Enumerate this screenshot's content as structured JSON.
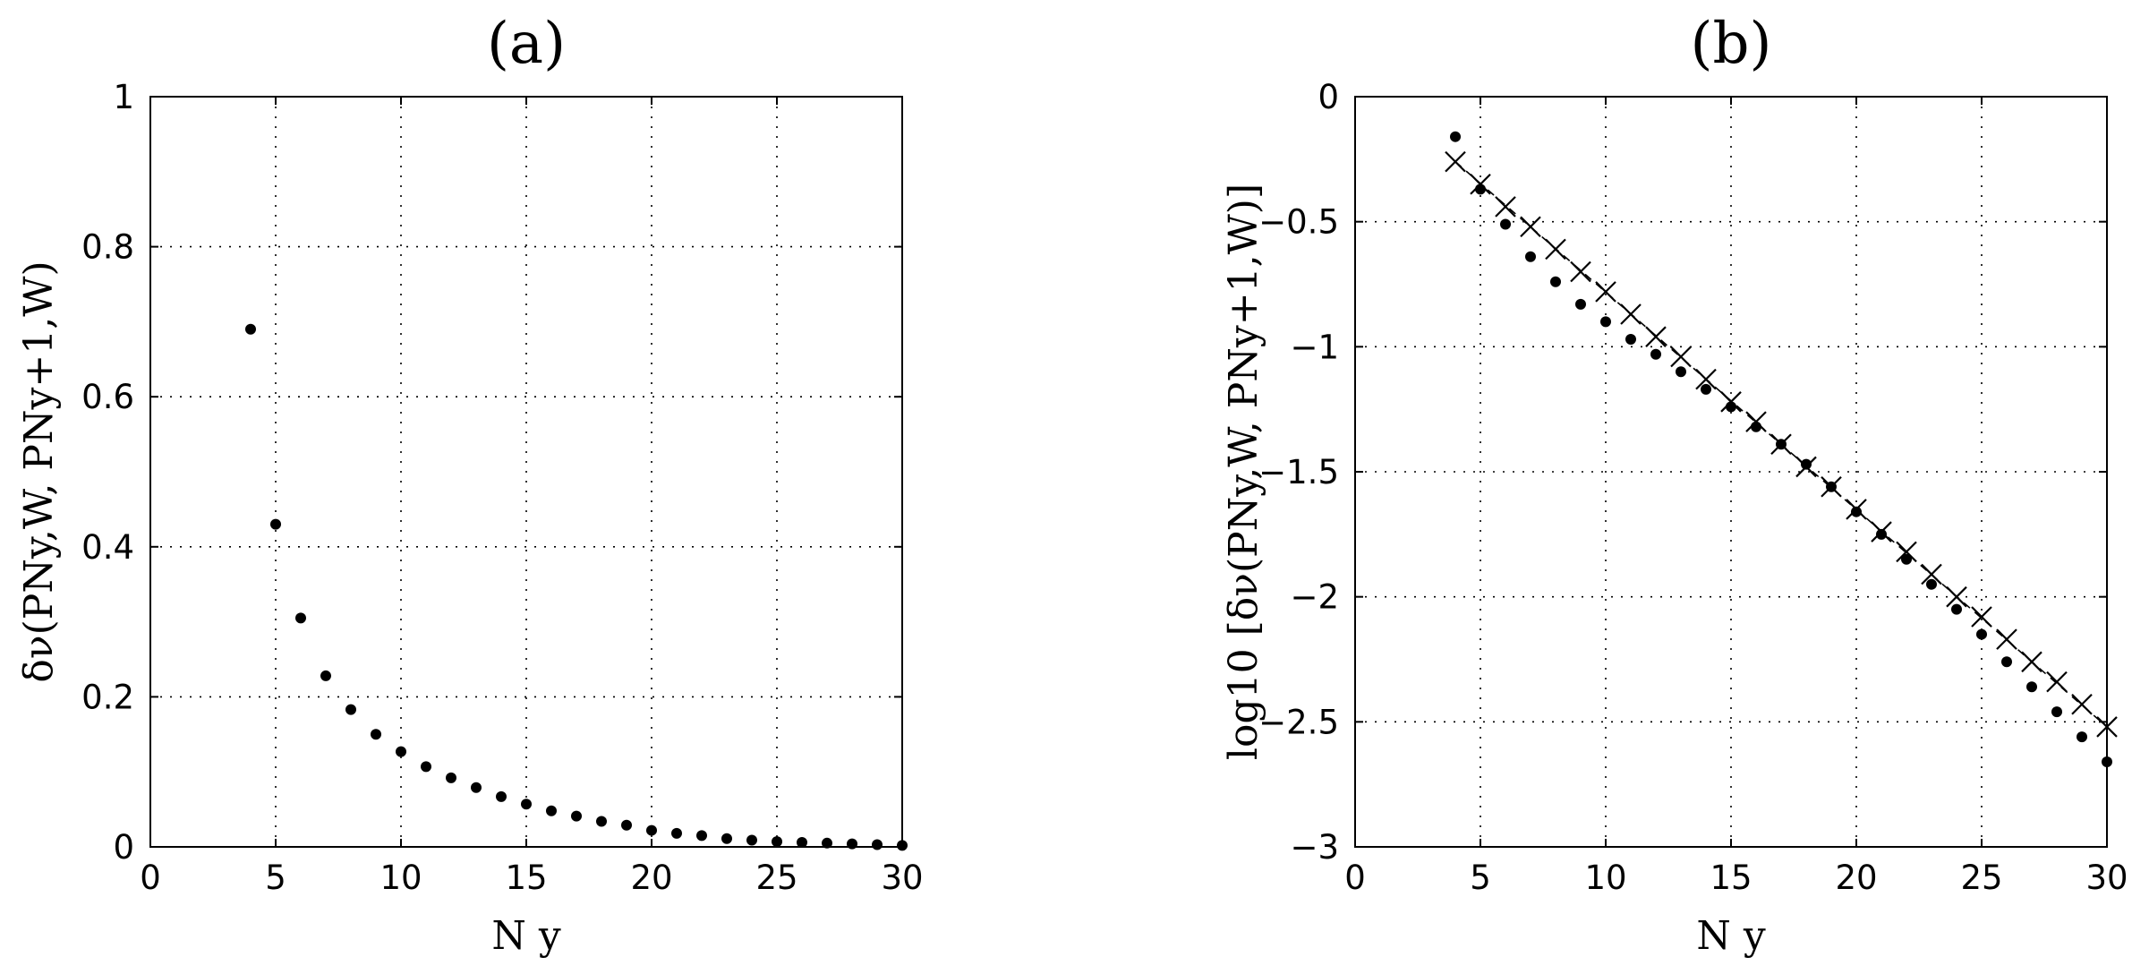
{
  "chart_data": [
    {
      "type": "scatter",
      "title": "(a)",
      "xlabel": "N y",
      "ylabel": "δν(PNy,W, PNy+1,W)",
      "xlim": [
        0,
        30
      ],
      "ylim": [
        0,
        1
      ],
      "xticks": [
        "0",
        "5",
        "10",
        "15",
        "20",
        "25",
        "30"
      ],
      "yticks": [
        "0",
        "0.2",
        "0.4",
        "0.6",
        "0.8",
        "1"
      ],
      "grid": true,
      "series": [
        {
          "marker": "dot",
          "x": [
            4,
            5,
            6,
            7,
            8,
            9,
            10,
            11,
            12,
            13,
            14,
            15,
            16,
            17,
            18,
            19,
            20,
            21,
            22,
            23,
            24,
            25,
            26,
            27,
            28,
            29,
            30
          ],
          "y": [
            0.69,
            0.43,
            0.305,
            0.228,
            0.183,
            0.15,
            0.127,
            0.107,
            0.092,
            0.079,
            0.067,
            0.057,
            0.048,
            0.041,
            0.034,
            0.029,
            0.022,
            0.018,
            0.015,
            0.011,
            0.009,
            0.007,
            0.006,
            0.005,
            0.004,
            0.003,
            0.002
          ]
        }
      ]
    },
    {
      "type": "scatter",
      "title": "(b)",
      "xlabel": "N y",
      "ylabel": "log10 [δν(PNy,W, PNy+1,W)]",
      "xlim": [
        0,
        30
      ],
      "ylim": [
        -3,
        0
      ],
      "xticks": [
        "0",
        "5",
        "10",
        "15",
        "20",
        "25",
        "30"
      ],
      "yticks": [
        "0",
        "-0.5",
        "-1",
        "-1.5",
        "-2",
        "-2.5",
        "-3"
      ],
      "grid": true,
      "series": [
        {
          "marker": "dot",
          "x": [
            4,
            5,
            6,
            7,
            8,
            9,
            10,
            11,
            12,
            13,
            14,
            15,
            16,
            17,
            18,
            19,
            20,
            21,
            22,
            23,
            24,
            25,
            26,
            27,
            28,
            29,
            30
          ],
          "y": [
            -0.16,
            -0.37,
            -0.51,
            -0.64,
            -0.74,
            -0.83,
            -0.9,
            -0.97,
            -1.03,
            -1.1,
            -1.17,
            -1.24,
            -1.32,
            -1.39,
            -1.47,
            -1.56,
            -1.66,
            -1.75,
            -1.85,
            -1.95,
            -2.05,
            -2.15,
            -2.26,
            -2.36,
            -2.46,
            -2.56,
            -2.66
          ]
        },
        {
          "marker": "x",
          "x": [
            4,
            5,
            6,
            7,
            8,
            9,
            10,
            11,
            12,
            13,
            14,
            15,
            16,
            17,
            18,
            19,
            20,
            21,
            22,
            23,
            24,
            25,
            26,
            27,
            28,
            29,
            30
          ],
          "y": [
            -0.26,
            -0.35,
            -0.44,
            -0.52,
            -0.61,
            -0.7,
            -0.78,
            -0.87,
            -0.96,
            -1.04,
            -1.13,
            -1.22,
            -1.3,
            -1.39,
            -1.48,
            -1.56,
            -1.65,
            -1.74,
            -1.82,
            -1.91,
            -2.0,
            -2.08,
            -2.17,
            -2.26,
            -2.34,
            -2.43,
            -2.52
          ]
        }
      ],
      "fit_line": {
        "x": [
          4,
          30
        ],
        "y": [
          -0.26,
          -2.52
        ]
      }
    }
  ]
}
